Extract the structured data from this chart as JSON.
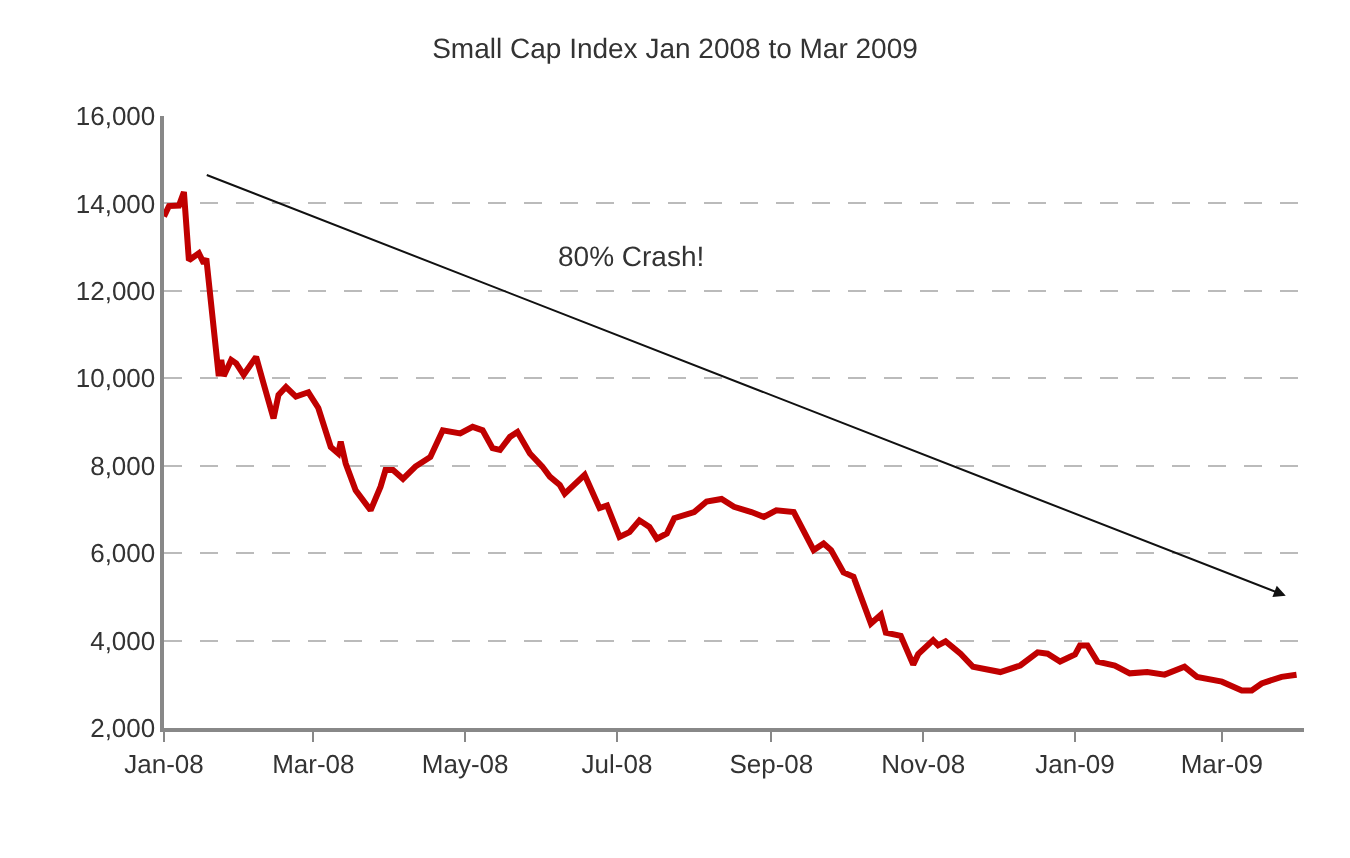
{
  "chart_data": {
    "type": "line",
    "title": "Small Cap Index Jan 2008 to Mar 2009",
    "x": [
      "2008-01-01",
      "2008-01-03",
      "2008-01-07",
      "2008-01-09",
      "2008-01-11",
      "2008-01-15",
      "2008-01-17",
      "2008-01-18",
      "2008-01-23",
      "2008-01-24",
      "2008-01-25",
      "2008-01-28",
      "2008-01-30",
      "2008-02-02",
      "2008-02-07",
      "2008-02-10",
      "2008-02-14",
      "2008-02-16",
      "2008-02-19",
      "2008-02-23",
      "2008-02-28",
      "2008-03-03",
      "2008-03-08",
      "2008-03-11",
      "2008-03-12",
      "2008-03-14",
      "2008-03-18",
      "2008-03-24",
      "2008-03-28",
      "2008-03-30",
      "2008-04-02",
      "2008-04-06",
      "2008-04-11",
      "2008-04-17",
      "2008-04-22",
      "2008-04-29",
      "2008-05-04",
      "2008-05-08",
      "2008-05-12",
      "2008-05-15",
      "2008-05-19",
      "2008-05-22",
      "2008-05-27",
      "2008-06-01",
      "2008-06-04",
      "2008-06-08",
      "2008-06-10",
      "2008-06-18",
      "2008-06-24",
      "2008-06-27",
      "2008-07-02",
      "2008-07-06",
      "2008-07-10",
      "2008-07-14",
      "2008-07-17",
      "2008-07-21",
      "2008-07-24",
      "2008-08-01",
      "2008-08-06",
      "2008-08-12",
      "2008-08-17",
      "2008-08-24",
      "2008-08-29",
      "2008-09-03",
      "2008-09-10",
      "2008-09-18",
      "2008-09-22",
      "2008-09-25",
      "2008-09-30",
      "2008-10-04",
      "2008-10-11",
      "2008-10-15",
      "2008-10-17",
      "2008-10-23",
      "2008-10-28",
      "2008-10-30",
      "2008-11-05",
      "2008-11-07",
      "2008-11-10",
      "2008-11-16",
      "2008-11-21",
      "2008-12-02",
      "2008-12-10",
      "2008-12-17",
      "2008-12-21",
      "2008-12-26",
      "2009-01-01",
      "2009-01-03",
      "2009-01-06",
      "2009-01-10",
      "2009-01-17",
      "2009-01-23",
      "2009-01-30",
      "2009-02-06",
      "2009-02-14",
      "2009-02-19",
      "2009-03-01",
      "2009-03-09",
      "2009-03-13",
      "2009-03-17",
      "2009-03-25",
      "2009-03-31"
    ],
    "series": [
      {
        "color": "#c00000",
        "values": [
          13700,
          13940,
          13950,
          14260,
          12700,
          12860,
          12630,
          12740,
          10050,
          10420,
          10050,
          10420,
          10340,
          10080,
          10490,
          9880,
          9080,
          9620,
          9800,
          9580,
          9680,
          9320,
          8430,
          8280,
          8550,
          8050,
          7440,
          6980,
          7520,
          7900,
          7900,
          7700,
          7980,
          8200,
          8810,
          8740,
          8890,
          8810,
          8400,
          8360,
          8660,
          8770,
          8280,
          7980,
          7750,
          7560,
          7360,
          7790,
          7030,
          7090,
          6370,
          6480,
          6750,
          6600,
          6330,
          6450,
          6800,
          6940,
          7180,
          7240,
          7060,
          6940,
          6830,
          6980,
          6940,
          6070,
          6220,
          6070,
          5560,
          5460,
          4390,
          4590,
          4180,
          4110,
          3450,
          3690,
          4010,
          3890,
          3980,
          3700,
          3400,
          3280,
          3430,
          3730,
          3700,
          3520,
          3680,
          3890,
          3890,
          3520,
          3430,
          3250,
          3280,
          3220,
          3400,
          3170,
          3060,
          2860,
          2860,
          3020,
          3170,
          3220
        ]
      }
    ],
    "xlim": [
      "2008-01-01",
      "2009-04-03"
    ],
    "xticks": [
      {
        "value": "2008-01-01",
        "label": "Jan-08"
      },
      {
        "value": "2008-03-01",
        "label": "Mar-08"
      },
      {
        "value": "2008-05-01",
        "label": "May-08"
      },
      {
        "value": "2008-07-01",
        "label": "Jul-08"
      },
      {
        "value": "2008-09-01",
        "label": "Sep-08"
      },
      {
        "value": "2008-11-01",
        "label": "Nov-08"
      },
      {
        "value": "2009-01-01",
        "label": "Jan-09"
      },
      {
        "value": "2009-03-01",
        "label": "Mar-09"
      }
    ],
    "ylim": [
      2000,
      16000
    ],
    "yticks": [
      {
        "value": 2000,
        "label": "2,000"
      },
      {
        "value": 4000,
        "label": "4,000"
      },
      {
        "value": 6000,
        "label": "6,000"
      },
      {
        "value": 8000,
        "label": "8,000"
      },
      {
        "value": 10000,
        "label": "10,000"
      },
      {
        "value": 12000,
        "label": "12,000"
      },
      {
        "value": 14000,
        "label": "14,000"
      },
      {
        "value": 16000,
        "label": "16,000"
      }
    ],
    "grid": "y",
    "marker": "none",
    "line_style": "solid",
    "annotations": [
      "80% Crash!"
    ]
  }
}
